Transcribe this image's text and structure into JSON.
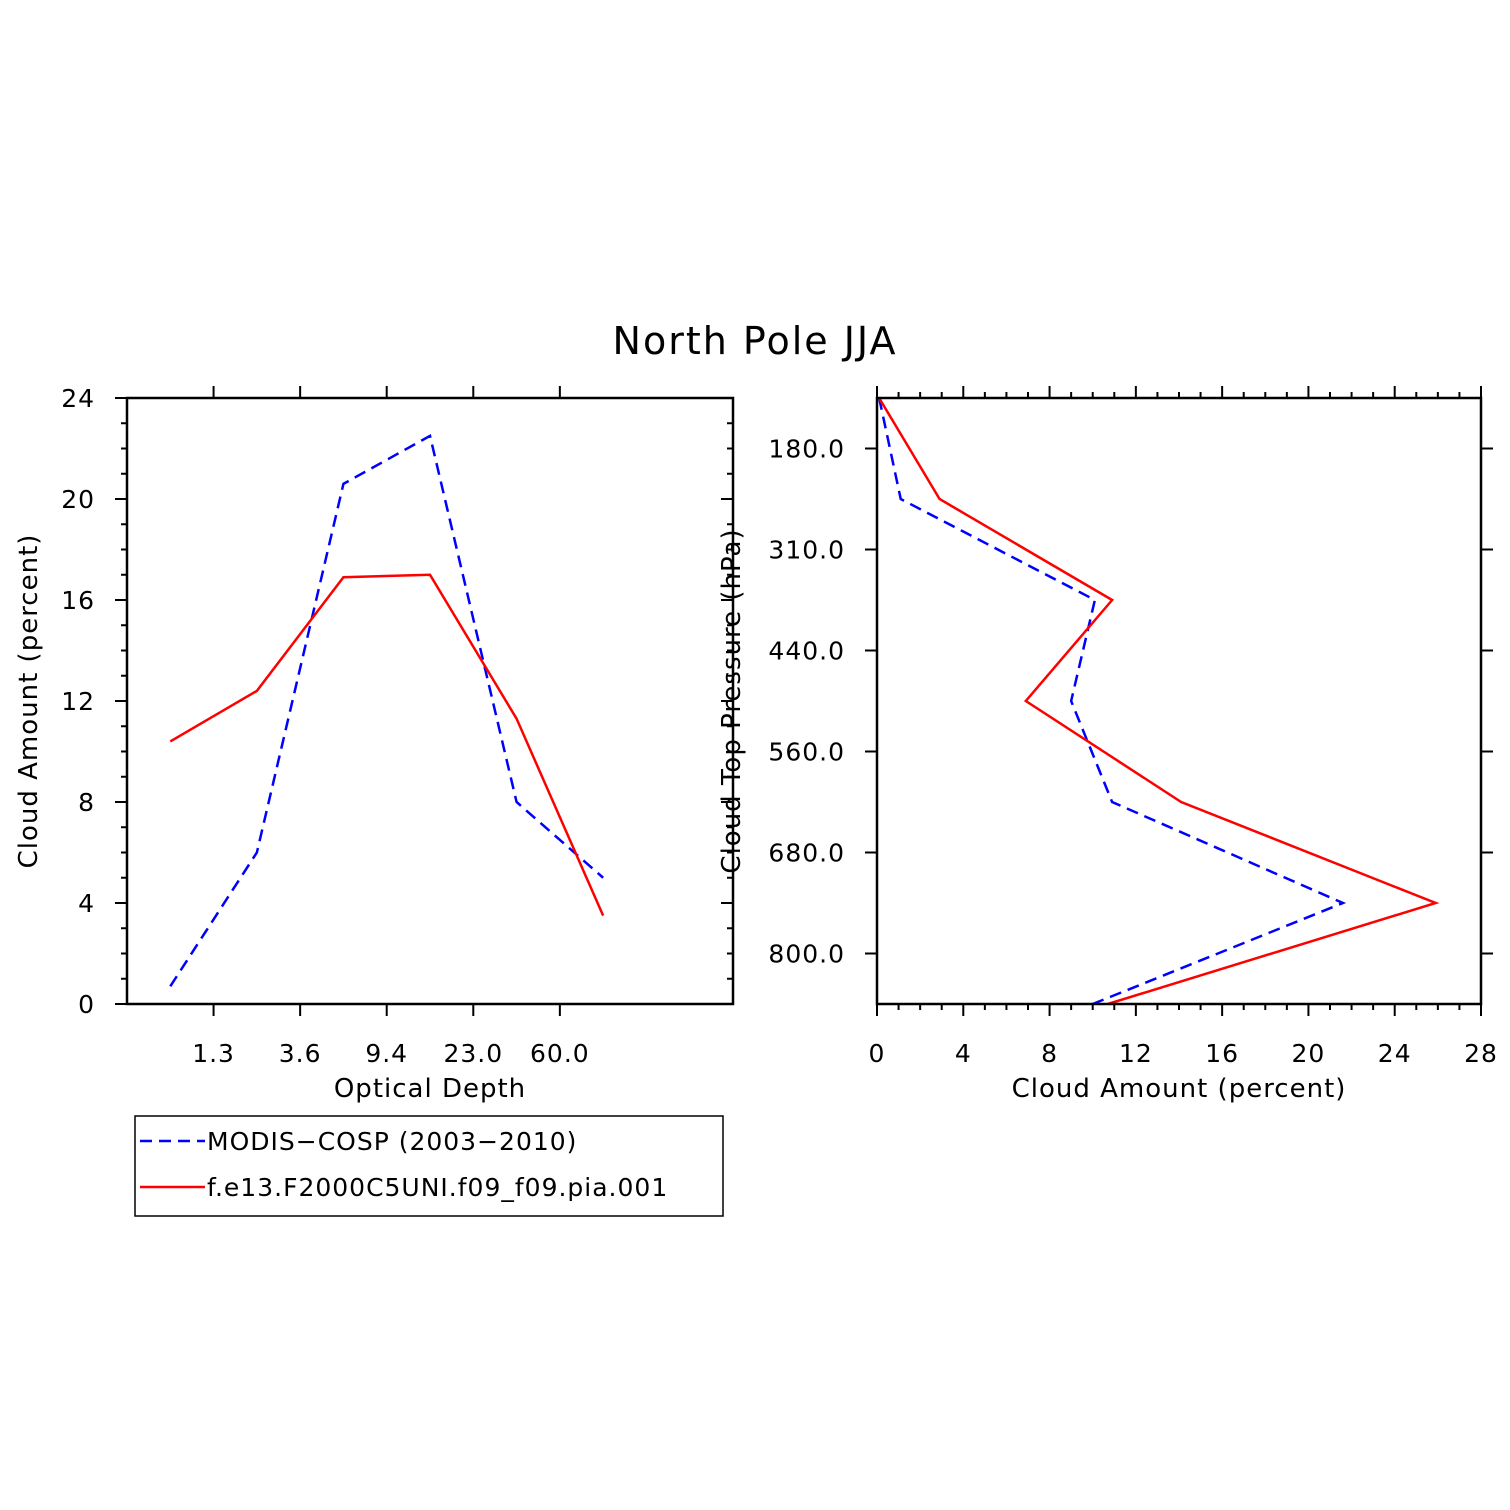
{
  "figure": {
    "title": "North Pole JJA",
    "colors": {
      "obs": "#0000ff",
      "model": "#ff0000",
      "axis": "#000000"
    }
  },
  "legend": {
    "items": [
      {
        "label": "MODIS−COSP (2003−2010)",
        "style": "dashed",
        "color": "#0000ff"
      },
      {
        "label": "f.e13.F2000C5UNI.f09_f09.pia.001",
        "style": "solid",
        "color": "#ff0000"
      }
    ]
  },
  "chart_data": [
    {
      "type": "line",
      "xlabel": "Optical Depth",
      "ylabel": "Cloud Amount (percent)",
      "x_bins": 7,
      "x_tick_labels": [
        {
          "bin": 1,
          "label": "1.3"
        },
        {
          "bin": 2,
          "label": "3.6"
        },
        {
          "bin": 3,
          "label": "9.4"
        },
        {
          "bin": 4,
          "label": "23.0"
        },
        {
          "bin": 5,
          "label": "60.0"
        }
      ],
      "ylim": [
        0,
        24
      ],
      "y_ticks": [
        0,
        4,
        8,
        12,
        16,
        20,
        24
      ],
      "grid": false,
      "series": [
        {
          "key": "obs",
          "color": "#0000ff",
          "style": "dashed",
          "values": [
            0.7,
            6.0,
            20.6,
            22.5,
            8.0,
            5.0
          ]
        },
        {
          "key": "model",
          "color": "#ff0000",
          "style": "solid",
          "values": [
            10.4,
            12.4,
            16.9,
            17.0,
            11.3,
            3.5
          ]
        }
      ],
      "x_positions": [
        0,
        1,
        2,
        3,
        4,
        5
      ]
    },
    {
      "type": "line",
      "xlabel": "Cloud Amount (percent)",
      "ylabel": "Cloud Top Pressure (hPa)",
      "xlim": [
        0,
        28
      ],
      "x_ticks": [
        0,
        4,
        8,
        12,
        16,
        20,
        24,
        28
      ],
      "y_bins": 6,
      "y_tick_labels": [
        {
          "bin": 0.5,
          "label": "180.0"
        },
        {
          "bin": 1.5,
          "label": "310.0"
        },
        {
          "bin": 2.5,
          "label": "440.0"
        },
        {
          "bin": 3.5,
          "label": "560.0"
        },
        {
          "bin": 4.5,
          "label": "680.0"
        },
        {
          "bin": 5.5,
          "label": "800.0"
        }
      ],
      "grid": false,
      "series": [
        {
          "key": "obs",
          "color": "#0000ff",
          "style": "dashed",
          "values": [
            0.1,
            1.1,
            10.1,
            9.0,
            10.9,
            21.6,
            10.0
          ]
        },
        {
          "key": "model",
          "color": "#ff0000",
          "style": "solid",
          "values": [
            0.1,
            2.9,
            10.9,
            6.9,
            14.1,
            25.9,
            10.7
          ]
        }
      ],
      "y_positions": [
        0,
        1,
        2,
        3,
        4,
        5,
        6
      ]
    }
  ]
}
